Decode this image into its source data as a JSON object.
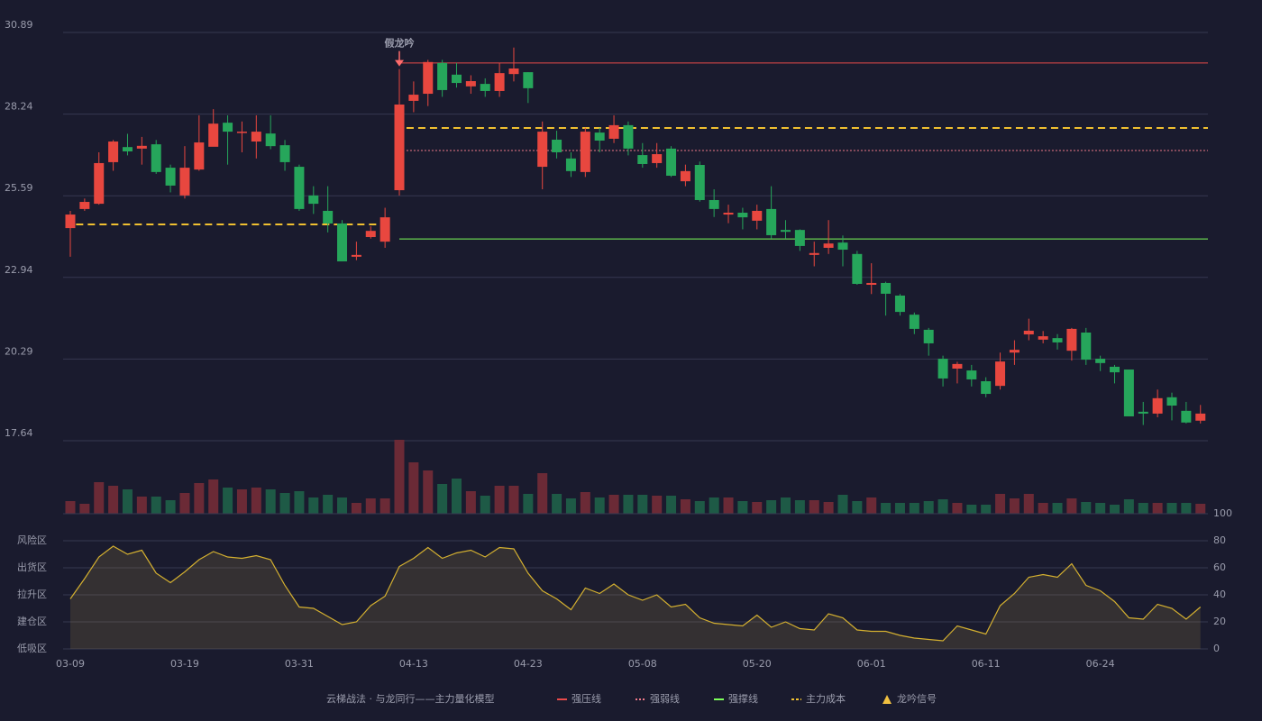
{
  "chart_data": [
    {
      "type": "candlestick",
      "title": "云梯战法 · 与龙同行——主力量化模型",
      "ylim": [
        17.64,
        30.89
      ],
      "yticks": [
        17.64,
        20.29,
        22.94,
        25.59,
        28.24,
        30.89
      ],
      "grid": true,
      "up_color": "#e8473f",
      "down_color": "#26a65b",
      "open": [
        24.54,
        25.16,
        25.33,
        26.68,
        27.17,
        27.12,
        27.26,
        26.5,
        25.6,
        26.44,
        27.18,
        27.96,
        27.63,
        27.35,
        27.61,
        27.23,
        26.53,
        25.6,
        25.1,
        24.69,
        23.61,
        24.25,
        24.1,
        25.77,
        28.67,
        28.9,
        29.9,
        29.52,
        29.14,
        29.22,
        28.99,
        29.54,
        29.6,
        26.53,
        27.41,
        26.8,
        26.36,
        27.64,
        27.44,
        27.88,
        26.91,
        26.65,
        27.12,
        26.06,
        26.59,
        25.45,
        24.98,
        25.04,
        24.78,
        25.16,
        24.48,
        24.48,
        23.67,
        23.9,
        24.07,
        23.7,
        22.7,
        22.76,
        22.35,
        21.73,
        21.24,
        20.3,
        19.98,
        19.92,
        19.57,
        19.42,
        20.5,
        21.09,
        20.92,
        20.97,
        20.56,
        21.15,
        20.3,
        20.04,
        19.95,
        18.58,
        18.52,
        19.05,
        18.61,
        18.29
      ],
      "high": [
        25.1,
        25.5,
        27.0,
        27.4,
        27.6,
        27.5,
        27.4,
        26.6,
        27.2,
        28.2,
        28.4,
        28.2,
        28.0,
        28.2,
        28.2,
        27.4,
        26.6,
        25.9,
        25.9,
        24.8,
        24.1,
        24.6,
        25.2,
        29.7,
        29.3,
        30.0,
        30.0,
        29.9,
        29.5,
        29.4,
        29.9,
        30.4,
        29.6,
        28.0,
        27.7,
        27.0,
        27.8,
        27.8,
        28.2,
        28.0,
        27.3,
        27.3,
        27.2,
        26.6,
        26.7,
        25.8,
        25.3,
        25.2,
        25.3,
        25.9,
        24.8,
        24.5,
        24.1,
        24.8,
        24.3,
        23.8,
        23.4,
        22.8,
        22.4,
        21.8,
        21.3,
        20.4,
        20.2,
        20.1,
        19.7,
        20.5,
        20.9,
        21.6,
        21.2,
        21.1,
        21.3,
        21.3,
        20.4,
        20.1,
        19.95,
        18.9,
        19.3,
        19.2,
        18.9,
        18.8
      ],
      "low": [
        23.61,
        25.1,
        25.3,
        26.4,
        26.9,
        26.6,
        26.3,
        25.7,
        25.5,
        26.4,
        27.2,
        26.6,
        27.0,
        26.8,
        27.1,
        26.4,
        25.1,
        25.0,
        24.4,
        23.46,
        23.5,
        24.2,
        23.9,
        25.6,
        28.3,
        28.5,
        28.8,
        29.1,
        28.9,
        28.8,
        28.8,
        29.3,
        28.6,
        25.8,
        26.8,
        26.2,
        26.2,
        27.0,
        27.3,
        26.9,
        26.5,
        26.5,
        26.2,
        25.9,
        25.4,
        24.9,
        24.7,
        24.5,
        24.5,
        24.2,
        24.2,
        23.8,
        23.3,
        23.7,
        23.3,
        22.7,
        22.4,
        21.7,
        21.7,
        21.1,
        20.4,
        19.4,
        19.5,
        19.4,
        19.05,
        19.3,
        20.1,
        20.9,
        20.8,
        20.6,
        20.24,
        20.1,
        19.9,
        19.5,
        18.43,
        18.15,
        18.4,
        18.3,
        18.2,
        18.2
      ],
      "close": [
        24.98,
        25.39,
        26.65,
        27.35,
        27.03,
        27.21,
        26.36,
        25.92,
        26.5,
        27.32,
        27.93,
        27.67,
        27.67,
        27.67,
        27.2,
        26.68,
        25.16,
        25.33,
        24.69,
        23.46,
        23.67,
        24.45,
        24.89,
        28.55,
        28.87,
        29.93,
        29.02,
        29.25,
        29.31,
        28.99,
        29.57,
        29.72,
        29.08,
        27.67,
        27.0,
        26.39,
        27.67,
        27.38,
        27.88,
        27.12,
        26.62,
        26.94,
        26.24,
        26.39,
        25.45,
        25.16,
        25.04,
        24.89,
        25.1,
        24.31,
        24.42,
        23.96,
        23.73,
        24.04,
        23.84,
        22.73,
        22.76,
        22.41,
        21.82,
        21.27,
        20.8,
        19.66,
        20.13,
        19.63,
        19.16,
        20.21,
        20.59,
        21.21,
        21.03,
        20.83,
        21.27,
        20.27,
        20.16,
        19.86,
        18.43,
        18.52,
        19.02,
        18.78,
        18.23,
        18.52
      ],
      "lines": [
        {
          "name": "强压线",
          "color": "#e84a4a",
          "style": "solid",
          "segments": [
            {
              "from": 23,
              "to": 80,
              "value": 29.9
            }
          ]
        },
        {
          "name": "强弱线",
          "color": "#f07a8a",
          "style": "dotted",
          "segments": [
            {
              "from": 23.5,
              "to": 80,
              "value": 27.06
            }
          ]
        },
        {
          "name": "强撑线",
          "color": "#7dff5a",
          "style": "solid",
          "segments": [
            {
              "from": 23,
              "to": 80,
              "value": 24.19
            }
          ]
        },
        {
          "name": "主力成本",
          "color": "#f0c030",
          "style": "dashed",
          "segments": [
            {
              "from": 0.4,
              "to": 22,
              "value": 24.66
            },
            {
              "from": 23.5,
              "to": 80,
              "value": 27.79
            }
          ]
        }
      ],
      "signal": {
        "name": "龙吟信号",
        "color": "#f0c040",
        "annotations": [
          {
            "index": 23,
            "label": "假龙吟",
            "color": "#ff6b6b"
          }
        ]
      }
    },
    {
      "type": "bar",
      "values": [
        14,
        11,
        35,
        31,
        27,
        19,
        19,
        15,
        23,
        34,
        38,
        29,
        27,
        29,
        27,
        23,
        25,
        18,
        21,
        18,
        12,
        17,
        17,
        82,
        57,
        48,
        33,
        39,
        25,
        20,
        31,
        31,
        22,
        45,
        22,
        17,
        24,
        18,
        21,
        21,
        21,
        20,
        20,
        16,
        14,
        18,
        18,
        14,
        13,
        15,
        18,
        15,
        15,
        13,
        21,
        14,
        18,
        12,
        12,
        12,
        14,
        16,
        12,
        10,
        10,
        22,
        17,
        22,
        12,
        12,
        17,
        13,
        12,
        10,
        16,
        12,
        12,
        12,
        12,
        11
      ],
      "up_color": "#6b2a36",
      "down_color": "#1e5a46"
    },
    {
      "type": "area",
      "categories": [
        "03-09",
        null,
        null,
        null,
        null,
        null,
        null,
        null,
        "03-19",
        null,
        null,
        null,
        null,
        null,
        null,
        null,
        "03-31",
        null,
        null,
        null,
        null,
        null,
        null,
        null,
        "04-13",
        null,
        null,
        null,
        null,
        null,
        null,
        null,
        "04-23",
        null,
        null,
        null,
        null,
        null,
        null,
        null,
        "05-08",
        null,
        null,
        null,
        null,
        null,
        null,
        null,
        "05-20",
        null,
        null,
        null,
        null,
        null,
        null,
        null,
        "06-01",
        null,
        null,
        null,
        null,
        null,
        null,
        null,
        "06-11",
        null,
        null,
        null,
        null,
        null,
        null,
        null,
        "06-24",
        null,
        null,
        null,
        null,
        null,
        null,
        null
      ],
      "values": [
        37,
        52,
        68,
        76,
        70,
        73,
        56,
        49,
        57,
        66,
        72,
        68,
        67,
        69,
        66,
        47,
        31,
        30,
        24,
        18,
        20,
        32,
        39,
        61,
        67,
        75,
        67,
        71,
        73,
        68,
        75,
        74,
        56,
        43,
        37,
        29,
        45,
        41,
        48,
        40,
        36,
        40,
        31,
        33,
        23,
        19,
        18,
        17,
        25,
        16,
        20,
        15,
        14,
        26,
        23,
        14,
        13,
        13,
        10,
        8,
        7,
        6,
        17,
        14,
        11,
        32,
        41,
        53,
        55,
        53,
        63,
        47,
        43,
        35,
        23,
        22,
        33,
        30,
        22,
        31
      ],
      "color": "#d4b030",
      "ylim": [
        0,
        100
      ],
      "yticks": [
        {
          "value": 0,
          "color": "#e84a4a"
        },
        {
          "value": 20,
          "color": "#f07070"
        },
        {
          "value": 40,
          "color": "#4f8fe8"
        },
        {
          "value": 60,
          "color": "#d84fd8"
        },
        {
          "value": 80,
          "color": "#e8a040"
        },
        {
          "value": 100,
          "color": "#7dff5a"
        }
      ],
      "zones": [
        {
          "label": "低吸区",
          "value": 0,
          "color": "#e85050"
        },
        {
          "label": "建仓区",
          "value": 20,
          "color": "#f07070"
        },
        {
          "label": "拉升区",
          "value": 40,
          "color": "#4f8fe8"
        },
        {
          "label": "出货区",
          "value": 60,
          "color": "#d84fd8"
        },
        {
          "label": "风险区",
          "value": 80,
          "color": "#e8a040"
        }
      ],
      "grid": true
    }
  ]
}
